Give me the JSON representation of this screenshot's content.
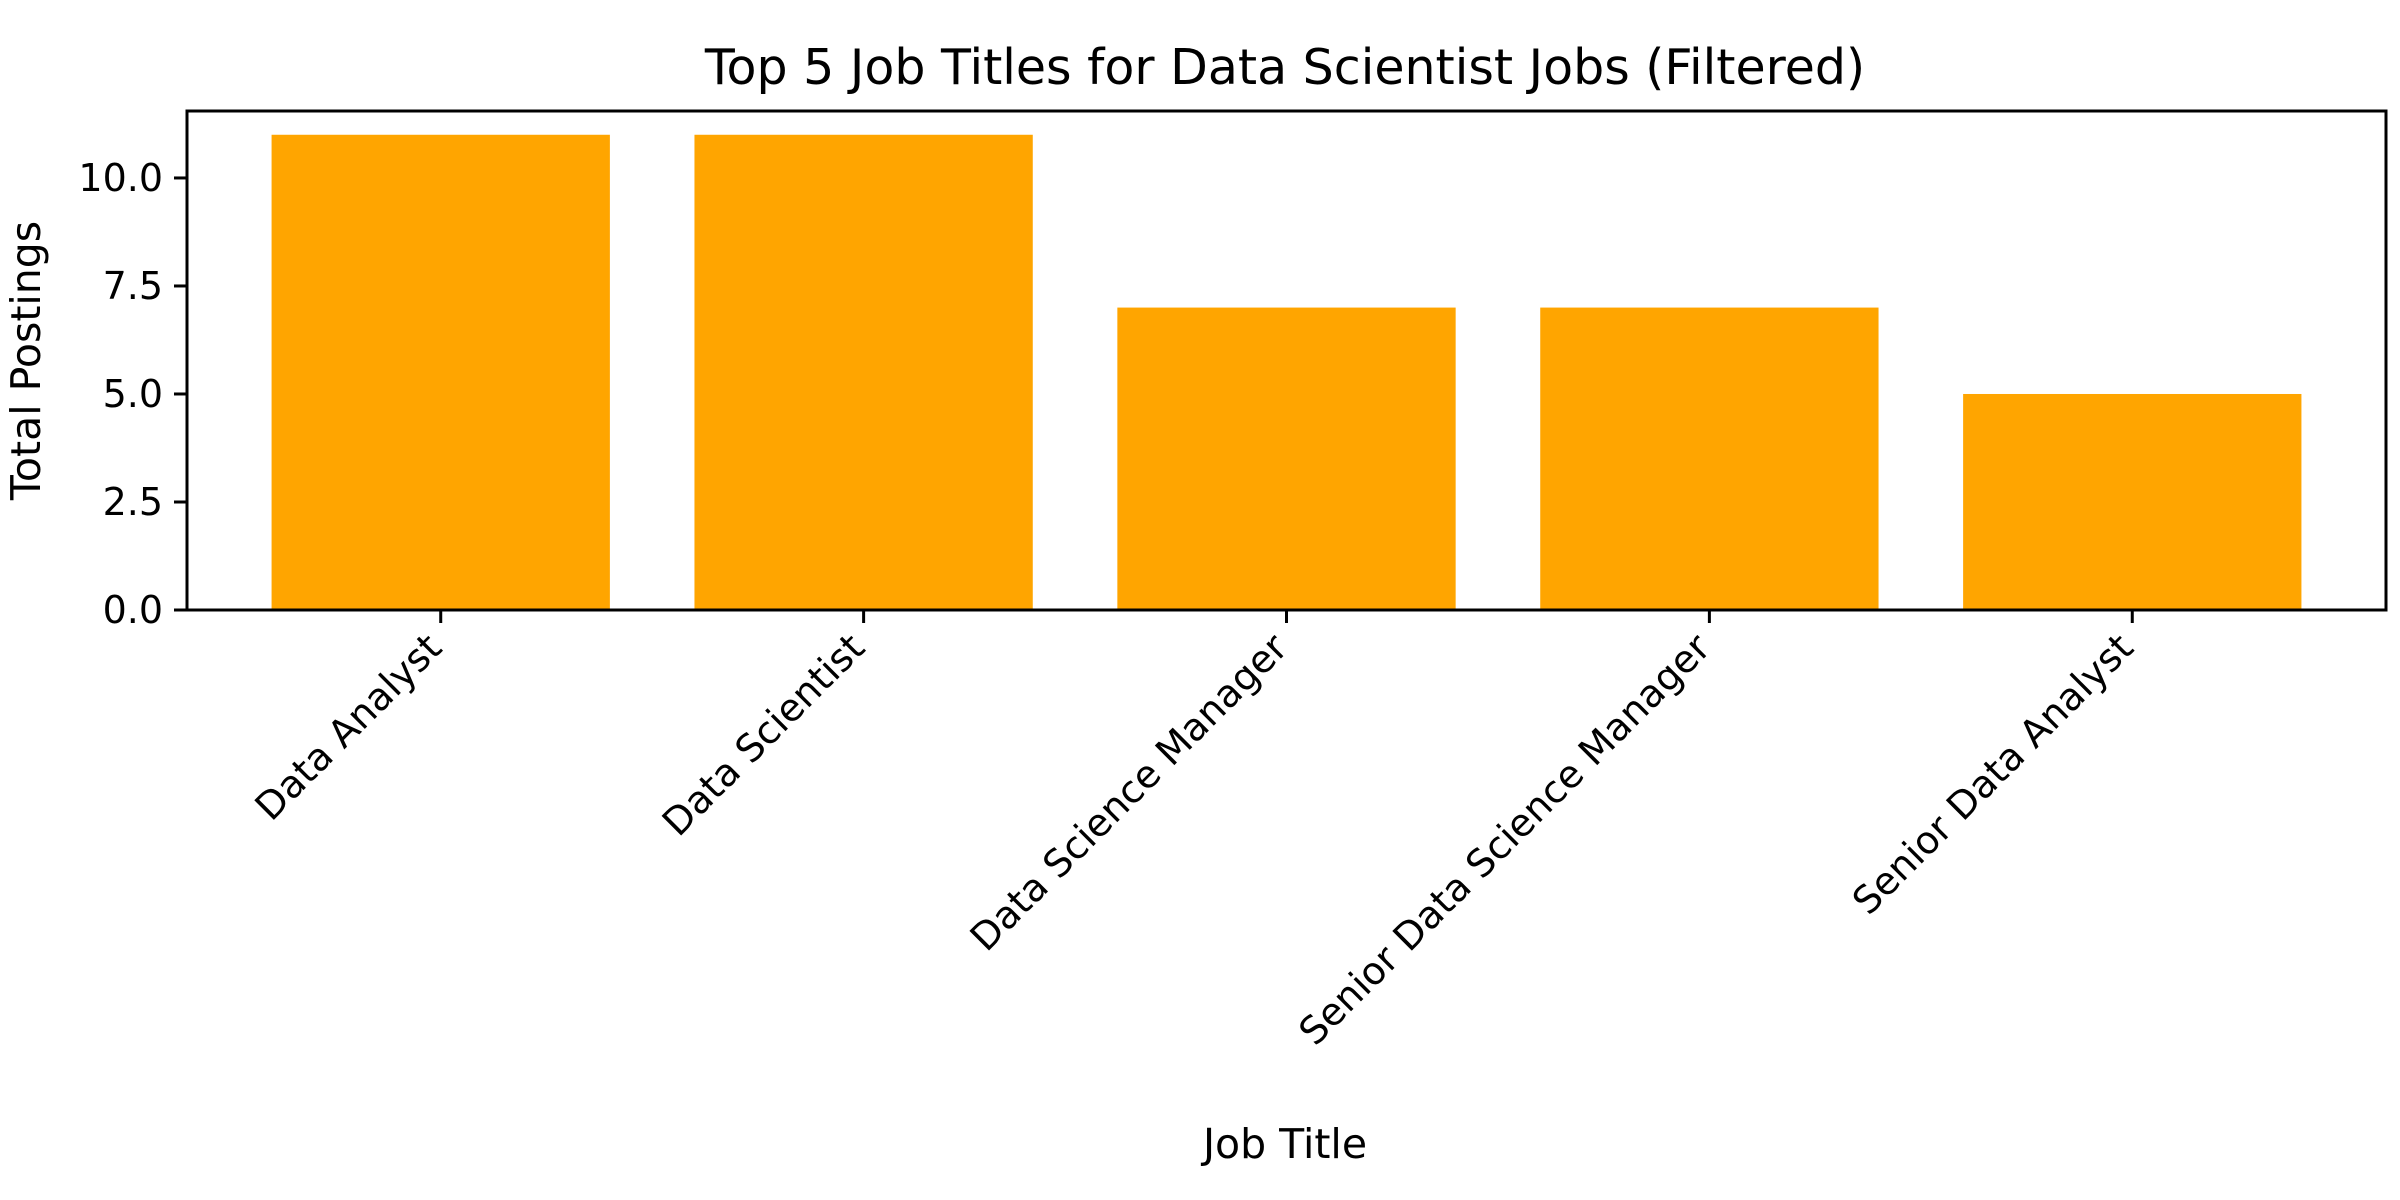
{
  "chart_data": {
    "type": "bar",
    "title": "Top 5 Job Titles for Data Scientist Jobs (Filtered)",
    "xlabel": "Job Title",
    "ylabel": "Total Postings",
    "categories": [
      "Data Analyst",
      "Data Scientist",
      "Data Science Manager",
      "Senior Data Science Manager",
      "Senior Data Analyst"
    ],
    "values": [
      11,
      11,
      7,
      7,
      5
    ],
    "ylim": [
      0,
      11.55
    ],
    "yticks": [
      0.0,
      2.5,
      5.0,
      7.5,
      10.0
    ],
    "ytick_labels": [
      "0.0",
      "2.5",
      "5.0",
      "7.5",
      "10.0"
    ],
    "bar_color": "#ffa500",
    "grid": false,
    "legend": "none"
  }
}
